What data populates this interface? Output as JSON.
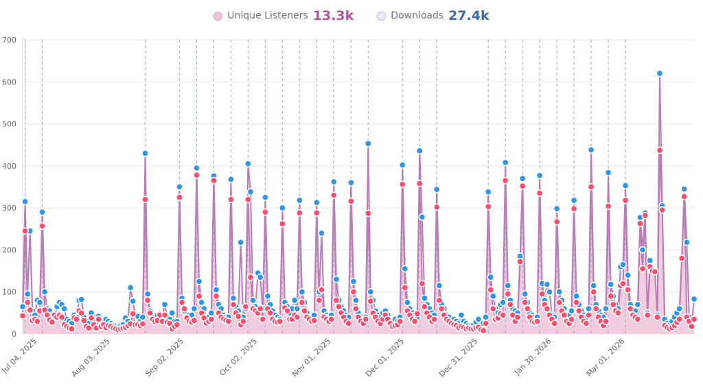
{
  "legend": {
    "listeners": {
      "label": "Unique Listeners",
      "value": "13.3k",
      "value_color": "#b5529a",
      "swatch": "#f2c4d8"
    },
    "downloads": {
      "label": "Downloads",
      "value": "27.4k",
      "value_color": "#3d6aa0",
      "swatch": "#e8ecf8"
    }
  },
  "chart_data": {
    "type": "line",
    "x_start": "2025-06-29",
    "x_step_days": 1,
    "ylim": [
      0,
      700
    ],
    "yticks": [
      0,
      100,
      200,
      300,
      400,
      500,
      600,
      700
    ],
    "xtick_labels": [
      "Jul 04, 2025",
      "Aug 03, 2025",
      "Sep 02, 2025",
      "Oct 02, 2025",
      "Nov 01, 2025",
      "Dec 01, 2025",
      "Dec 31, 2025",
      "Jan 30, 2026",
      "Mar 01, 2026"
    ],
    "xtick_dates": [
      "2025-07-04",
      "2025-08-03",
      "2025-09-02",
      "2025-10-02",
      "2025-11-01",
      "2025-12-01",
      "2025-12-31",
      "2026-01-30",
      "2026-03-01"
    ],
    "grid": true,
    "release_markers": [
      "2025-06-30",
      "2025-07-07",
      "2025-08-18",
      "2025-09-01",
      "2025-09-08",
      "2025-09-15",
      "2025-09-22",
      "2025-09-29",
      "2025-10-06",
      "2025-10-13",
      "2025-10-20",
      "2025-10-27",
      "2025-11-03",
      "2025-11-10",
      "2025-11-17",
      "2025-12-01",
      "2025-12-08",
      "2025-12-15",
      "2026-01-05",
      "2026-01-12",
      "2026-01-19",
      "2026-01-26",
      "2026-02-02",
      "2026-02-09",
      "2026-02-16",
      "2026-02-23",
      "2026-03-02"
    ],
    "colors": {
      "listeners_dot": "#ff4d6d",
      "downloads_dot": "#2f95e6",
      "line": "#b97db8",
      "listeners_fill": "#f2cde0",
      "downloads_fill": "#e9ecf8",
      "marker": "#a9b6cc"
    },
    "series": [
      {
        "name": "Downloads",
        "values": [
          65,
          315,
          95,
          245,
          55,
          45,
          80,
          75,
          290,
          100,
          60,
          55,
          45,
          40,
          65,
          75,
          70,
          60,
          35,
          30,
          25,
          45,
          40,
          80,
          82,
          40,
          30,
          25,
          50,
          35,
          40,
          42,
          35,
          30,
          35,
          30,
          25,
          20,
          18,
          15,
          20,
          22,
          38,
          30,
          110,
          78,
          45,
          42,
          30,
          40,
          430,
          95,
          55,
          45,
          40,
          45,
          48,
          42,
          70,
          40,
          35,
          50,
          30,
          30,
          350,
          85,
          55,
          40,
          45,
          45,
          60,
          395,
          125,
          75,
          60,
          40,
          40,
          50,
          376,
          105,
          70,
          60,
          45,
          40,
          40,
          368,
          85,
          65,
          55,
          218,
          40,
          60,
          405,
          338,
          80,
          65,
          145,
          135,
          60,
          325,
          90,
          70,
          55,
          45,
          40,
          35,
          300,
          75,
          65,
          50,
          60,
          80,
          60,
          318,
          100,
          75,
          50,
          40,
          40,
          45,
          313,
          100,
          240,
          55,
          45,
          40,
          45,
          362,
          130,
          80,
          65,
          55,
          45,
          40,
          360,
          125,
          80,
          50,
          40,
          35,
          40,
          453,
          100,
          80,
          55,
          45,
          40,
          50,
          55,
          45,
          30,
          25,
          35,
          30,
          40,
          402,
          155,
          75,
          60,
          50,
          45,
          40,
          436,
          278,
          85,
          70,
          60,
          50,
          45,
          344,
          115,
          70,
          60,
          45,
          40,
          30,
          35,
          30,
          25,
          45,
          30,
          25,
          20,
          20,
          22,
          28,
          35,
          20,
          25,
          40,
          338,
          135,
          90,
          60,
          50,
          70,
          75,
          408,
          115,
          80,
          60,
          55,
          50,
          185,
          370,
          95,
          75,
          50,
          45,
          40,
          40,
          377,
          120,
          80,
          118,
          100,
          45,
          40,
          298,
          100,
          80,
          60,
          40,
          45,
          55,
          318,
          90,
          70,
          55,
          45,
          40,
          60,
          438,
          115,
          70,
          55,
          45,
          40,
          60,
          384,
          118,
          90,
          70,
          60,
          160,
          165,
          353,
          140,
          70,
          55,
          55,
          70,
          277,
          200,
          288,
          50,
          175,
          155,
          150,
          45,
          620,
          305,
          35,
          25,
          20,
          30,
          40,
          50,
          60,
          180,
          345,
          218,
          40,
          20,
          83
        ]
      },
      {
        "name": "Unique Listeners",
        "values": [
          43,
          245,
          75,
          57,
          32,
          35,
          30,
          55,
          257,
          57,
          45,
          33,
          28,
          45,
          40,
          45,
          40,
          22,
          18,
          14,
          12,
          38,
          35,
          55,
          50,
          32,
          18,
          14,
          38,
          22,
          14,
          35,
          18,
          22,
          15,
          20,
          18,
          14,
          12,
          10,
          12,
          14,
          16,
          20,
          24,
          48,
          22,
          22,
          20,
          24,
          320,
          80,
          50,
          35,
          30,
          32,
          45,
          30,
          45,
          28,
          25,
          12,
          18,
          22,
          325,
          75,
          60,
          38,
          30,
          28,
          32,
          378,
          90,
          50,
          38,
          26,
          30,
          35,
          365,
          90,
          50,
          40,
          35,
          32,
          30,
          320,
          70,
          50,
          42,
          22,
          30,
          65,
          320,
          135,
          60,
          55,
          50,
          60,
          35,
          290,
          60,
          50,
          35,
          30,
          28,
          30,
          262,
          62,
          55,
          35,
          35,
          45,
          40,
          288,
          75,
          55,
          40,
          35,
          30,
          32,
          288,
          80,
          105,
          40,
          35,
          30,
          35,
          330,
          80,
          65,
          50,
          40,
          30,
          25,
          316,
          100,
          60,
          40,
          30,
          25,
          35,
          287,
          78,
          50,
          40,
          30,
          25,
          35,
          45,
          35,
          25,
          18,
          20,
          22,
          30,
          356,
          110,
          55,
          45,
          35,
          30,
          48,
          358,
          120,
          65,
          50,
          40,
          30,
          35,
          302,
          80,
          60,
          45,
          35,
          30,
          25,
          22,
          20,
          15,
          18,
          15,
          12,
          14,
          12,
          12,
          15,
          16,
          10,
          8,
          25,
          303,
          105,
          60,
          35,
          38,
          48,
          45,
          365,
          95,
          70,
          45,
          30,
          40,
          172,
          352,
          75,
          60,
          40,
          30,
          28,
          30,
          335,
          95,
          70,
          60,
          45,
          35,
          25,
          267,
          75,
          55,
          45,
          30,
          25,
          35,
          298,
          75,
          55,
          40,
          30,
          25,
          45,
          350,
          100,
          60,
          40,
          30,
          20,
          30,
          304,
          90,
          70,
          55,
          50,
          115,
          120,
          318,
          105,
          60,
          45,
          40,
          35,
          263,
          155,
          282,
          45,
          160,
          150,
          148,
          40,
          437,
          295,
          20,
          15,
          12,
          15,
          20,
          28,
          35,
          180,
          327,
          40,
          30,
          18,
          35
        ]
      }
    ]
  }
}
